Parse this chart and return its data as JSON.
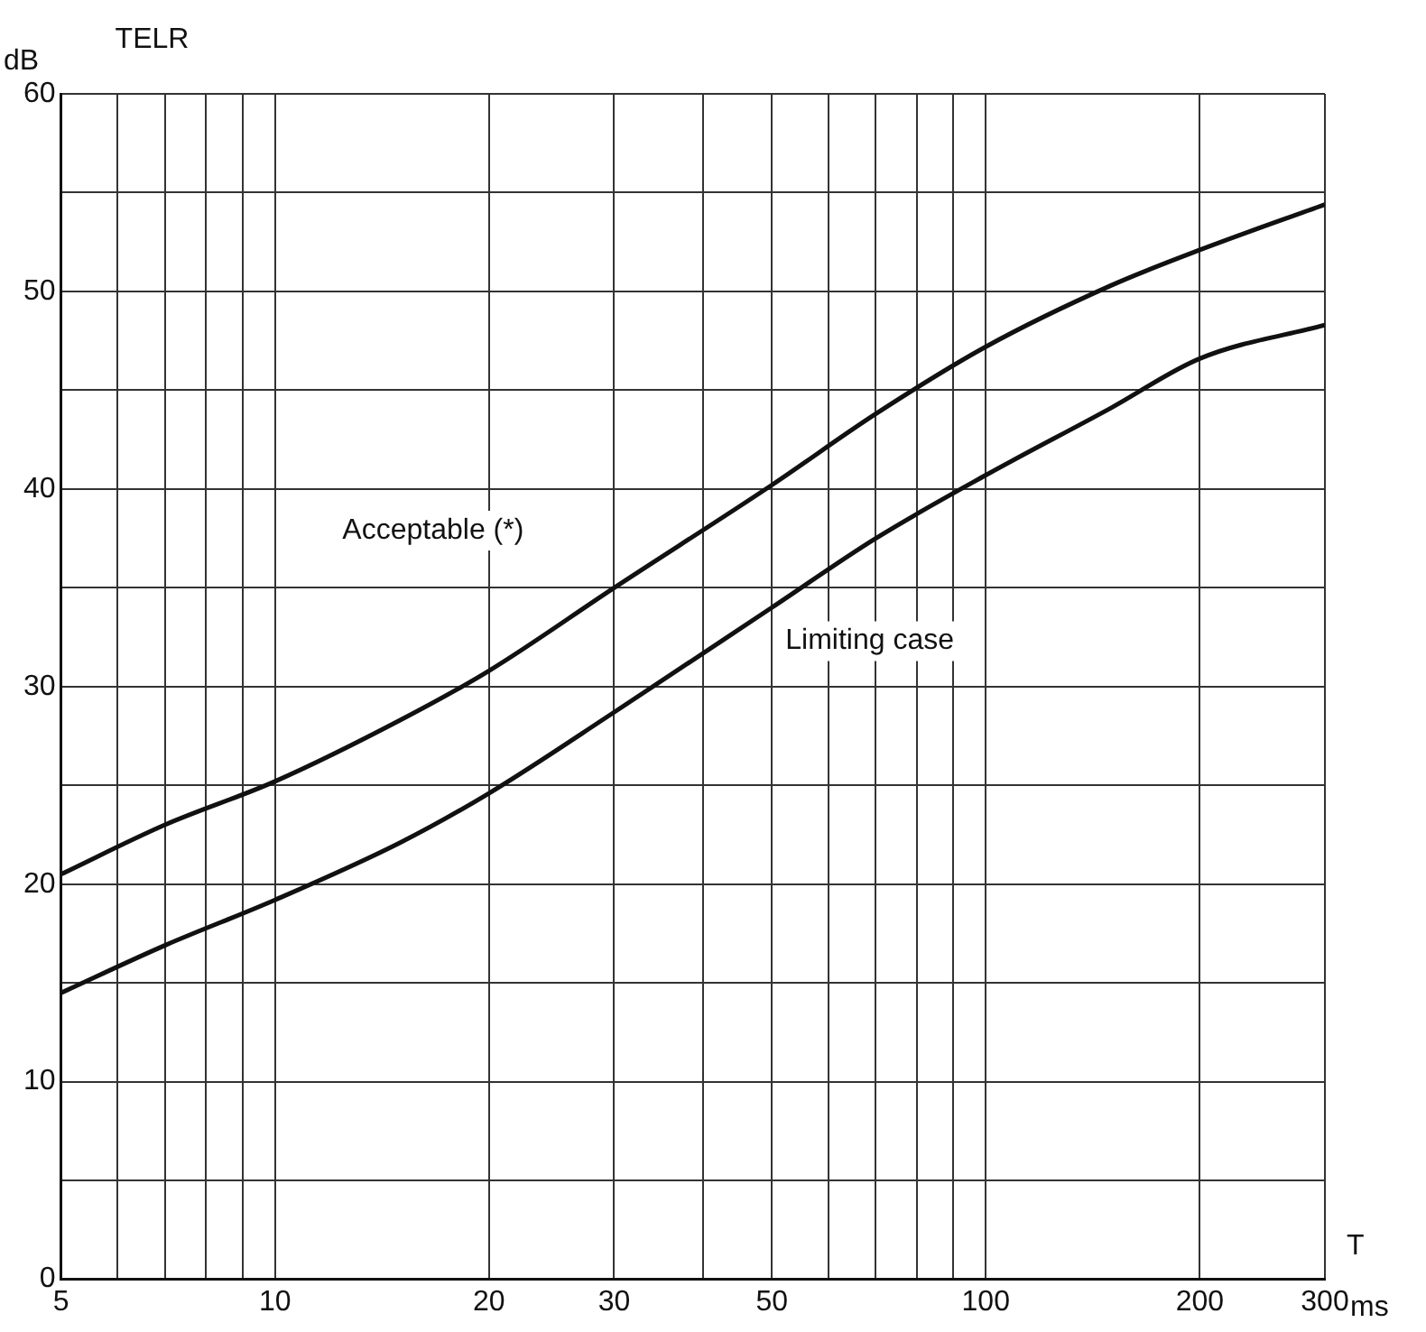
{
  "chart_data": {
    "type": "line",
    "title": "TELR",
    "ylabel": "dB",
    "xlabel": "T",
    "annotations": [
      "ms"
    ],
    "log": "x",
    "grid": true,
    "legend": false,
    "marker": "none",
    "line_style": "solid",
    "xlim": [
      5,
      300
    ],
    "ylim": [
      0,
      60
    ],
    "xticks": [
      5,
      {
        "value": 6,
        "label": null
      },
      {
        "value": 7,
        "label": null
      },
      {
        "value": 8,
        "label": null
      },
      {
        "value": 9,
        "label": null
      },
      10,
      20,
      30,
      {
        "value": 40,
        "label": null
      },
      50,
      {
        "value": 60,
        "label": null
      },
      {
        "value": 70,
        "label": null
      },
      {
        "value": 80,
        "label": null
      },
      {
        "value": 90,
        "label": null
      },
      100,
      200,
      300
    ],
    "yticks": [
      0,
      {
        "value": 5,
        "label": null
      },
      10,
      {
        "value": 15,
        "label": null
      },
      20,
      {
        "value": 25,
        "label": null
      },
      30,
      {
        "value": 35,
        "label": null
      },
      40,
      {
        "value": 45,
        "label": null
      },
      50,
      {
        "value": 55,
        "label": null
      },
      60
    ],
    "x": [
      5,
      7,
      10,
      15,
      20,
      30,
      50,
      70,
      100,
      150,
      200,
      300
    ],
    "series": [
      {
        "name": "Acceptable (*)",
        "color": "#111111",
        "values": [
          20.5,
          23,
          25.2,
          28.3,
          30.8,
          35,
          40.2,
          43.8,
          47.2,
          50.3,
          52.1,
          54.4
        ]
      },
      {
        "name": "Limiting case",
        "color": "#111111",
        "values": [
          14.5,
          16.9,
          19.2,
          22.1,
          24.6,
          28.7,
          34,
          37.5,
          40.7,
          44.1,
          46.6,
          48.3
        ]
      }
    ]
  }
}
